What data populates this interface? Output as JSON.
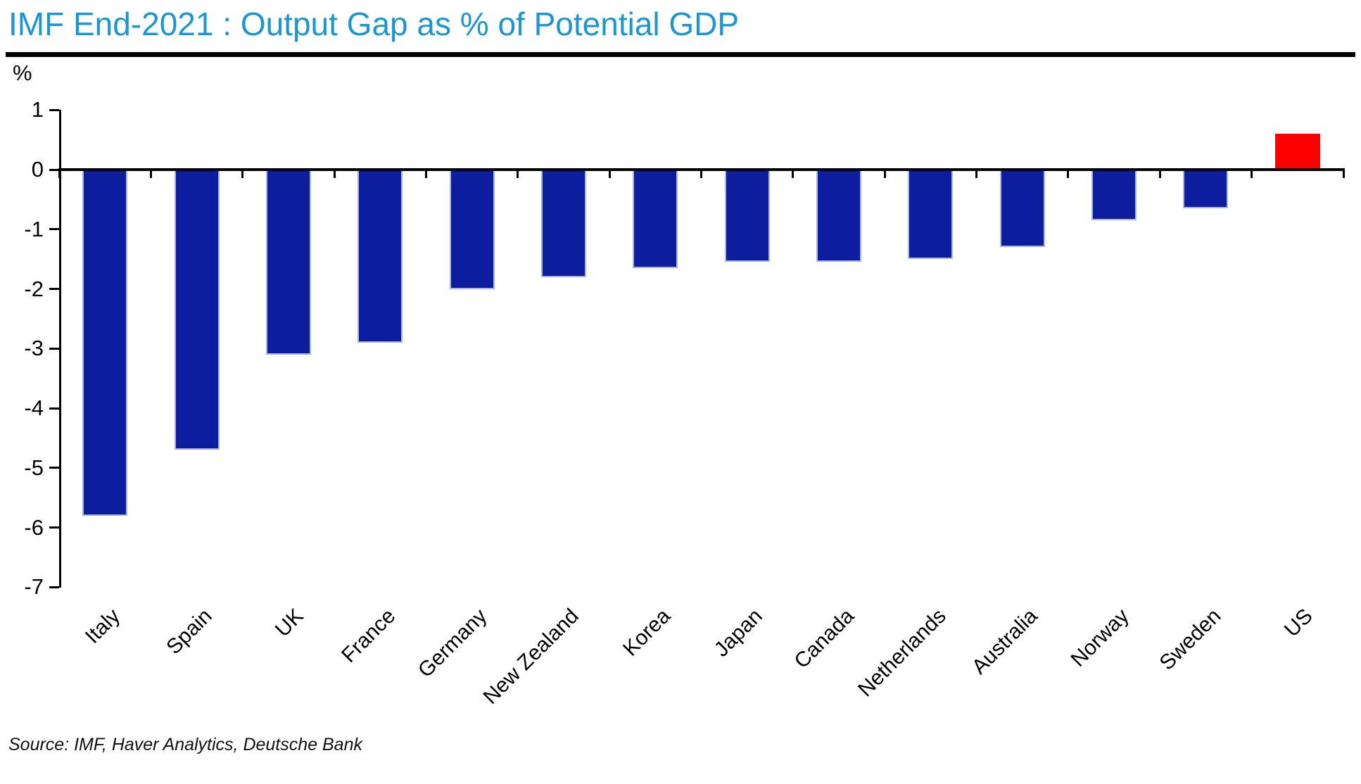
{
  "header": {
    "title": "IMF End-2021 : Output Gap as % of Potential GDP"
  },
  "y_axis": {
    "unit_label": "%"
  },
  "footer": {
    "source": "Source: IMF, Haver Analytics, Deutsche Bank"
  },
  "chart_data": {
    "type": "bar",
    "title": "IMF End-2021 : Output Gap as % of Potential GDP",
    "xlabel": "",
    "ylabel": "%",
    "ylim": [
      -7,
      1
    ],
    "ytick_step": 1,
    "grid": false,
    "legend": false,
    "categories": [
      "Italy",
      "Spain",
      "UK",
      "France",
      "Germany",
      "New Zealand",
      "Korea",
      "Japan",
      "Canada",
      "Netherlands",
      "Australia",
      "Norway",
      "Sweden",
      "US"
    ],
    "values": [
      -5.8,
      -4.7,
      -3.1,
      -2.9,
      -2.0,
      -1.8,
      -1.65,
      -1.55,
      -1.55,
      -1.5,
      -1.3,
      -0.85,
      -0.65,
      0.6
    ],
    "highlight_category": "US",
    "colors": {
      "bar_default": "#0C1E9E",
      "bar_highlight": "#FE0000",
      "bar_border": "#A9B6E4",
      "title": "#1C96D3",
      "axis": "#000000",
      "text": "#000000"
    }
  }
}
